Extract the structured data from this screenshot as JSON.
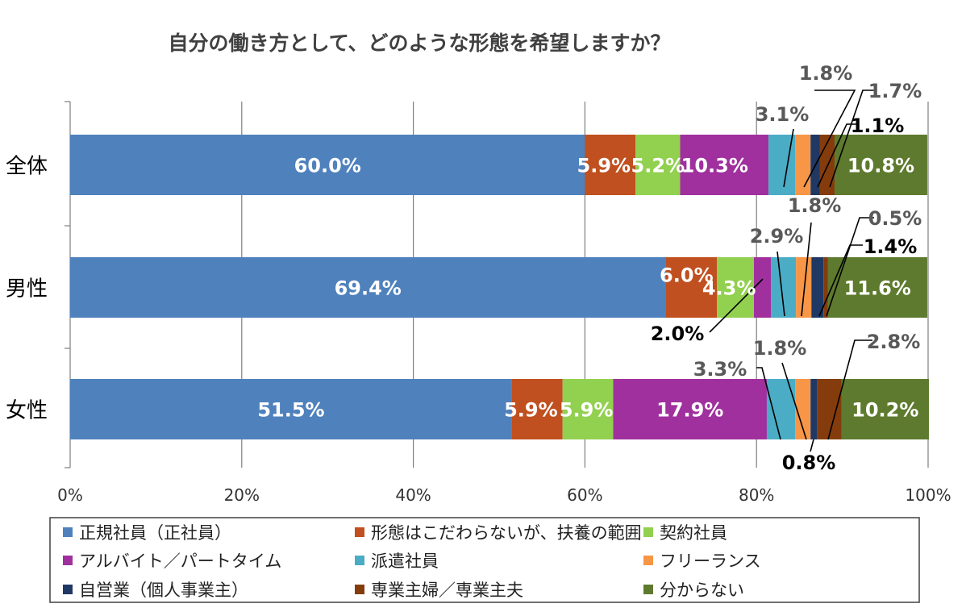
{
  "chart_data": {
    "type": "bar",
    "orientation": "horizontal",
    "stacked": true,
    "percent": true,
    "title": "自分の働き方として、どのような形態を希望しますか？",
    "categories": [
      "全体",
      "男性",
      "女性"
    ],
    "x_ticks": [
      "0%",
      "20%",
      "40%",
      "60%",
      "80%",
      "100%"
    ],
    "xlim": [
      0,
      100
    ],
    "grid": true,
    "legend_position": "bottom",
    "series": [
      {
        "name": "正規社員（正社員）",
        "color": "#4F81BD",
        "values": [
          60.0,
          69.4,
          51.5
        ],
        "labels": [
          "60.0%",
          "69.4%",
          "51.5%"
        ]
      },
      {
        "name": "形態はこだわらないが、扶養の範囲",
        "color": "#C0501F",
        "values": [
          5.9,
          6.0,
          5.9
        ],
        "labels": [
          "5.9%",
          "6.0%",
          "5.9%"
        ]
      },
      {
        "name": "契約社員",
        "color": "#92D050",
        "values": [
          5.2,
          4.3,
          5.9
        ],
        "labels": [
          "5.2%",
          "4.3%",
          "5.9%"
        ]
      },
      {
        "name": "アルバイト／パートタイム",
        "color": "#A0309E",
        "values": [
          10.3,
          2.0,
          17.9
        ],
        "labels": [
          "10.3%",
          "2.0%",
          "17.9%"
        ]
      },
      {
        "name": "派遣社員",
        "color": "#4BACC6",
        "values": [
          3.1,
          2.9,
          3.3
        ],
        "labels": [
          "3.1%",
          "2.9%",
          "3.3%"
        ]
      },
      {
        "name": "フリーランス",
        "color": "#F79646",
        "values": [
          1.8,
          1.8,
          1.8
        ],
        "labels": [
          "1.8%",
          "1.8%",
          "1.8%"
        ]
      },
      {
        "name": "自営業（個人事業主）",
        "color": "#1F3864",
        "values": [
          1.1,
          1.4,
          0.8
        ],
        "labels": [
          "1.1%",
          "1.4%",
          "0.8%"
        ]
      },
      {
        "name": "専業主婦／専業主夫",
        "color": "#843C0C",
        "values": [
          1.7,
          0.5,
          2.8
        ],
        "labels": [
          "1.7%",
          "0.5%",
          "2.8%"
        ]
      },
      {
        "name": "分からない",
        "color": "#5E7A2E",
        "values": [
          10.8,
          11.6,
          10.2
        ],
        "labels": [
          "10.8%",
          "11.6%",
          "10.2%"
        ]
      }
    ]
  }
}
